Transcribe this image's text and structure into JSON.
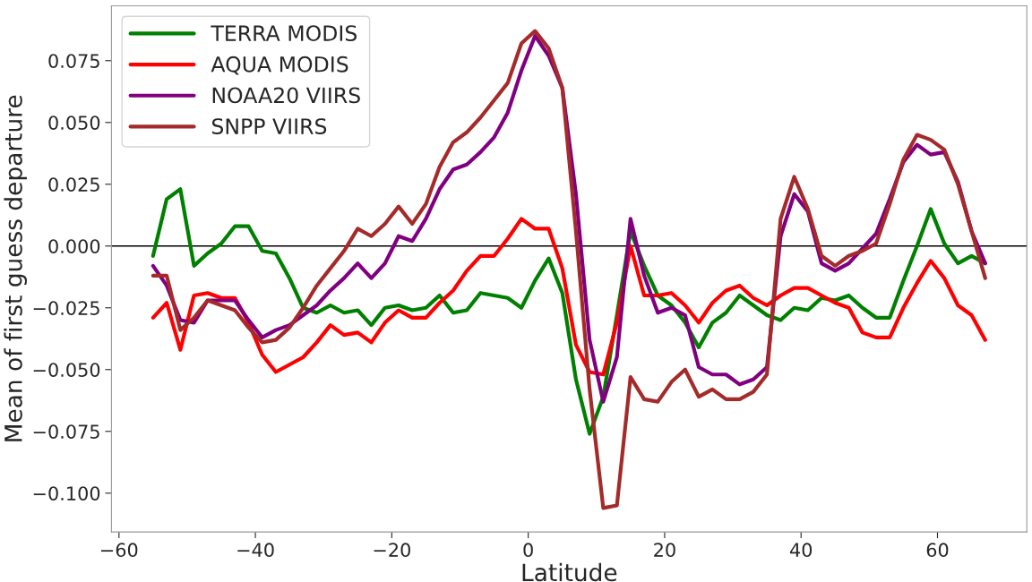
{
  "chart_data": {
    "type": "line",
    "xlabel": "Latitude",
    "ylabel": "Mean of first guess departure",
    "x": [
      -55,
      -53,
      -51,
      -49,
      -47,
      -45,
      -43,
      -41,
      -39,
      -37,
      -35,
      -33,
      -31,
      -29,
      -27,
      -25,
      -23,
      -21,
      -19,
      -17,
      -15,
      -13,
      -11,
      -9,
      -7,
      -5,
      -3,
      -1,
      1,
      3,
      5,
      7,
      9,
      11,
      13,
      15,
      17,
      19,
      21,
      23,
      25,
      27,
      29,
      31,
      33,
      35,
      37,
      39,
      41,
      43,
      45,
      47,
      49,
      51,
      53,
      55,
      57,
      59,
      61,
      63,
      65,
      67
    ],
    "series": [
      {
        "name": "TERRA MODIS",
        "color": "#008000",
        "values": [
          -0.004,
          0.019,
          0.023,
          -0.008,
          -0.003,
          0.001,
          0.008,
          0.008,
          -0.002,
          -0.003,
          -0.013,
          -0.025,
          -0.027,
          -0.024,
          -0.027,
          -0.026,
          -0.032,
          -0.025,
          -0.024,
          -0.026,
          -0.025,
          -0.02,
          -0.027,
          -0.026,
          -0.019,
          -0.02,
          -0.021,
          -0.025,
          -0.014,
          -0.005,
          -0.019,
          -0.054,
          -0.076,
          -0.061,
          -0.028,
          0.006,
          -0.008,
          -0.02,
          -0.024,
          -0.031,
          -0.041,
          -0.031,
          -0.027,
          -0.02,
          -0.024,
          -0.028,
          -0.03,
          -0.025,
          -0.026,
          -0.021,
          -0.022,
          -0.02,
          -0.025,
          -0.029,
          -0.029,
          -0.014,
          0.0,
          0.015,
          0.001,
          -0.007,
          -0.004,
          -0.007
        ]
      },
      {
        "name": "AQUA MODIS",
        "color": "#ff0000",
        "values": [
          -0.029,
          -0.023,
          -0.042,
          -0.02,
          -0.019,
          -0.021,
          -0.021,
          -0.031,
          -0.044,
          -0.051,
          -0.048,
          -0.045,
          -0.039,
          -0.032,
          -0.036,
          -0.035,
          -0.039,
          -0.031,
          -0.026,
          -0.029,
          -0.029,
          -0.023,
          -0.018,
          -0.01,
          -0.004,
          -0.004,
          0.003,
          0.011,
          0.007,
          0.007,
          -0.009,
          -0.04,
          -0.051,
          -0.052,
          -0.031,
          0.0,
          -0.02,
          -0.02,
          -0.019,
          -0.024,
          -0.031,
          -0.023,
          -0.018,
          -0.016,
          -0.021,
          -0.024,
          -0.02,
          -0.017,
          -0.017,
          -0.02,
          -0.023,
          -0.025,
          -0.035,
          -0.037,
          -0.037,
          -0.025,
          -0.015,
          -0.006,
          -0.013,
          -0.024,
          -0.028,
          -0.038
        ]
      },
      {
        "name": "NOAA20 VIIRS",
        "color": "#800080",
        "values": [
          -0.008,
          -0.016,
          -0.03,
          -0.031,
          -0.022,
          -0.022,
          -0.022,
          -0.03,
          -0.037,
          -0.034,
          -0.032,
          -0.028,
          -0.024,
          -0.018,
          -0.013,
          -0.007,
          -0.013,
          -0.007,
          0.004,
          0.002,
          0.011,
          0.023,
          0.031,
          0.033,
          0.038,
          0.044,
          0.054,
          0.071,
          0.085,
          0.077,
          0.064,
          0.021,
          -0.038,
          -0.063,
          -0.045,
          0.011,
          -0.012,
          -0.027,
          -0.025,
          -0.028,
          -0.049,
          -0.052,
          -0.052,
          -0.056,
          -0.054,
          -0.049,
          0.004,
          0.021,
          0.014,
          -0.007,
          -0.01,
          -0.007,
          -0.001,
          0.005,
          0.019,
          0.034,
          0.041,
          0.037,
          0.038,
          0.026,
          0.006,
          -0.007
        ]
      },
      {
        "name": "SNPP VIIRS",
        "color": "#a52a2a",
        "values": [
          -0.012,
          -0.012,
          -0.034,
          -0.029,
          -0.022,
          -0.024,
          -0.026,
          -0.033,
          -0.039,
          -0.038,
          -0.033,
          -0.025,
          -0.016,
          -0.009,
          -0.002,
          0.007,
          0.004,
          0.009,
          0.016,
          0.009,
          0.017,
          0.032,
          0.042,
          0.046,
          0.052,
          0.059,
          0.066,
          0.082,
          0.087,
          0.08,
          0.064,
          0.006,
          -0.058,
          -0.106,
          -0.105,
          -0.053,
          -0.062,
          -0.063,
          -0.055,
          -0.05,
          -0.061,
          -0.058,
          -0.062,
          -0.062,
          -0.059,
          -0.052,
          0.011,
          0.028,
          0.015,
          -0.004,
          -0.008,
          -0.004,
          -0.002,
          0.001,
          0.017,
          0.035,
          0.045,
          0.043,
          0.039,
          0.025,
          0.006,
          -0.013
        ]
      }
    ],
    "xlim": [
      -61.1,
      73.1
    ],
    "xticks": [
      {
        "value": -60,
        "label": "−60"
      },
      {
        "value": -40,
        "label": "−40"
      },
      {
        "value": -20,
        "label": "−20"
      },
      0,
      20,
      40,
      60
    ],
    "ylim": [
      -0.1157,
      0.0972
    ],
    "yticks": [
      {
        "value": -0.1,
        "label": "−0.100"
      },
      {
        "value": -0.075,
        "label": "−0.075"
      },
      {
        "value": -0.05,
        "label": "−0.050"
      },
      {
        "value": -0.025,
        "label": "−0.025"
      },
      {
        "value": 0,
        "label": "0.000"
      },
      {
        "value": 0.025,
        "label": "0.025"
      },
      {
        "value": 0.05,
        "label": "0.050"
      },
      {
        "value": 0.075,
        "label": "0.075"
      }
    ],
    "ref_lines": [
      {
        "axis": "y",
        "value": 0,
        "color": "#000000"
      }
    ],
    "grid": false,
    "legend": "top left",
    "marker": "none",
    "line_style": "solid"
  }
}
